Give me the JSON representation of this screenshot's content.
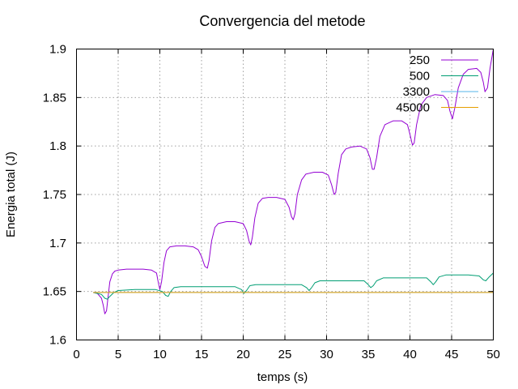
{
  "chart_data": {
    "type": "line",
    "title": "Convergencia del metode",
    "xlabel": "temps (s)",
    "ylabel": "Energia total (J)",
    "xlim": [
      0,
      50
    ],
    "ylim": [
      1.6,
      1.9
    ],
    "xticks": [
      0,
      5,
      10,
      15,
      20,
      25,
      30,
      35,
      40,
      45,
      50
    ],
    "yticks": [
      1.6,
      1.65,
      1.7,
      1.75,
      1.8,
      1.85,
      1.9
    ],
    "xtick_labels": [
      "0",
      "5",
      "10",
      "15",
      "20",
      "25",
      "30",
      "35",
      "40",
      "45",
      "50"
    ],
    "ytick_labels": [
      "1.6",
      "1.65",
      "1.7",
      "1.75",
      "1.8",
      "1.85",
      "1.9"
    ],
    "grid": true,
    "legend_position": "top-right",
    "series": [
      {
        "name": "250",
        "color": "#9400d3",
        "x": [
          2.0,
          2.5,
          3.0,
          3.2,
          3.4,
          3.6,
          3.8,
          4.0,
          4.3,
          4.6,
          5.0,
          6.0,
          7.0,
          8.0,
          9.0,
          9.6,
          9.8,
          10.0,
          10.2,
          10.5,
          10.8,
          11.2,
          12.0,
          13.0,
          14.0,
          14.6,
          15.0,
          15.4,
          15.7,
          15.9,
          16.2,
          16.6,
          17.0,
          18.0,
          19.0,
          20.0,
          20.4,
          20.7,
          20.9,
          21.1,
          21.4,
          21.8,
          22.3,
          23.0,
          24.0,
          25.0,
          25.5,
          25.8,
          26.0,
          26.2,
          26.5,
          27.0,
          27.5,
          28.5,
          29.5,
          30.2,
          30.6,
          30.9,
          31.1,
          31.4,
          31.8,
          32.3,
          33.0,
          34.0,
          34.8,
          35.2,
          35.5,
          35.7,
          36.0,
          36.4,
          37.0,
          38.0,
          39.0,
          39.7,
          40.0,
          40.3,
          40.5,
          40.8,
          41.3,
          42.0,
          43.0,
          44.0,
          44.5,
          44.8,
          45.1,
          45.4,
          45.8,
          46.4,
          47.0,
          48.0,
          48.5,
          48.8,
          49.0,
          49.3,
          49.6,
          50.0
        ],
        "y": [
          1.649,
          1.648,
          1.643,
          1.636,
          1.627,
          1.63,
          1.645,
          1.66,
          1.668,
          1.671,
          1.672,
          1.673,
          1.673,
          1.673,
          1.672,
          1.669,
          1.66,
          1.652,
          1.66,
          1.68,
          1.692,
          1.696,
          1.697,
          1.697,
          1.696,
          1.693,
          1.686,
          1.676,
          1.674,
          1.682,
          1.702,
          1.716,
          1.72,
          1.722,
          1.722,
          1.72,
          1.713,
          1.702,
          1.698,
          1.706,
          1.726,
          1.741,
          1.746,
          1.747,
          1.747,
          1.745,
          1.737,
          1.727,
          1.724,
          1.73,
          1.75,
          1.765,
          1.771,
          1.773,
          1.773,
          1.77,
          1.76,
          1.75,
          1.752,
          1.772,
          1.791,
          1.797,
          1.799,
          1.8,
          1.797,
          1.788,
          1.776,
          1.776,
          1.788,
          1.81,
          1.822,
          1.826,
          1.826,
          1.822,
          1.812,
          1.801,
          1.803,
          1.822,
          1.842,
          1.85,
          1.853,
          1.852,
          1.847,
          1.836,
          1.828,
          1.84,
          1.86,
          1.874,
          1.879,
          1.88,
          1.876,
          1.866,
          1.856,
          1.86,
          1.88,
          1.9
        ]
      },
      {
        "name": "500",
        "color": "#009e73",
        "x": [
          2.0,
          3.0,
          3.4,
          3.7,
          4.0,
          4.5,
          5.0,
          7.0,
          9.5,
          10.3,
          10.7,
          11.0,
          11.3,
          11.7,
          12.5,
          15.0,
          19.0,
          19.8,
          20.1,
          20.4,
          20.8,
          21.5,
          24.0,
          27.0,
          27.6,
          27.9,
          28.2,
          28.6,
          29.2,
          32.0,
          34.5,
          35.0,
          35.3,
          35.6,
          36.0,
          36.8,
          40.0,
          42.0,
          42.5,
          42.8,
          43.1,
          43.5,
          44.3,
          47.0,
          48.3,
          48.8,
          49.1,
          49.5,
          50.0
        ],
        "y": [
          1.649,
          1.647,
          1.643,
          1.642,
          1.645,
          1.649,
          1.651,
          1.652,
          1.652,
          1.65,
          1.646,
          1.645,
          1.65,
          1.654,
          1.655,
          1.655,
          1.655,
          1.652,
          1.648,
          1.651,
          1.656,
          1.657,
          1.657,
          1.657,
          1.654,
          1.651,
          1.654,
          1.659,
          1.661,
          1.661,
          1.661,
          1.657,
          1.654,
          1.656,
          1.661,
          1.664,
          1.664,
          1.664,
          1.66,
          1.657,
          1.66,
          1.665,
          1.667,
          1.667,
          1.666,
          1.662,
          1.661,
          1.665,
          1.669
        ]
      },
      {
        "name": "3300",
        "color": "#56b4e9",
        "x": [
          2.0,
          50.0
        ],
        "y": [
          1.649,
          1.649
        ]
      },
      {
        "name": "45000",
        "color": "#e69f00",
        "x": [
          2.0,
          50.0
        ],
        "y": [
          1.649,
          1.649
        ]
      }
    ]
  }
}
